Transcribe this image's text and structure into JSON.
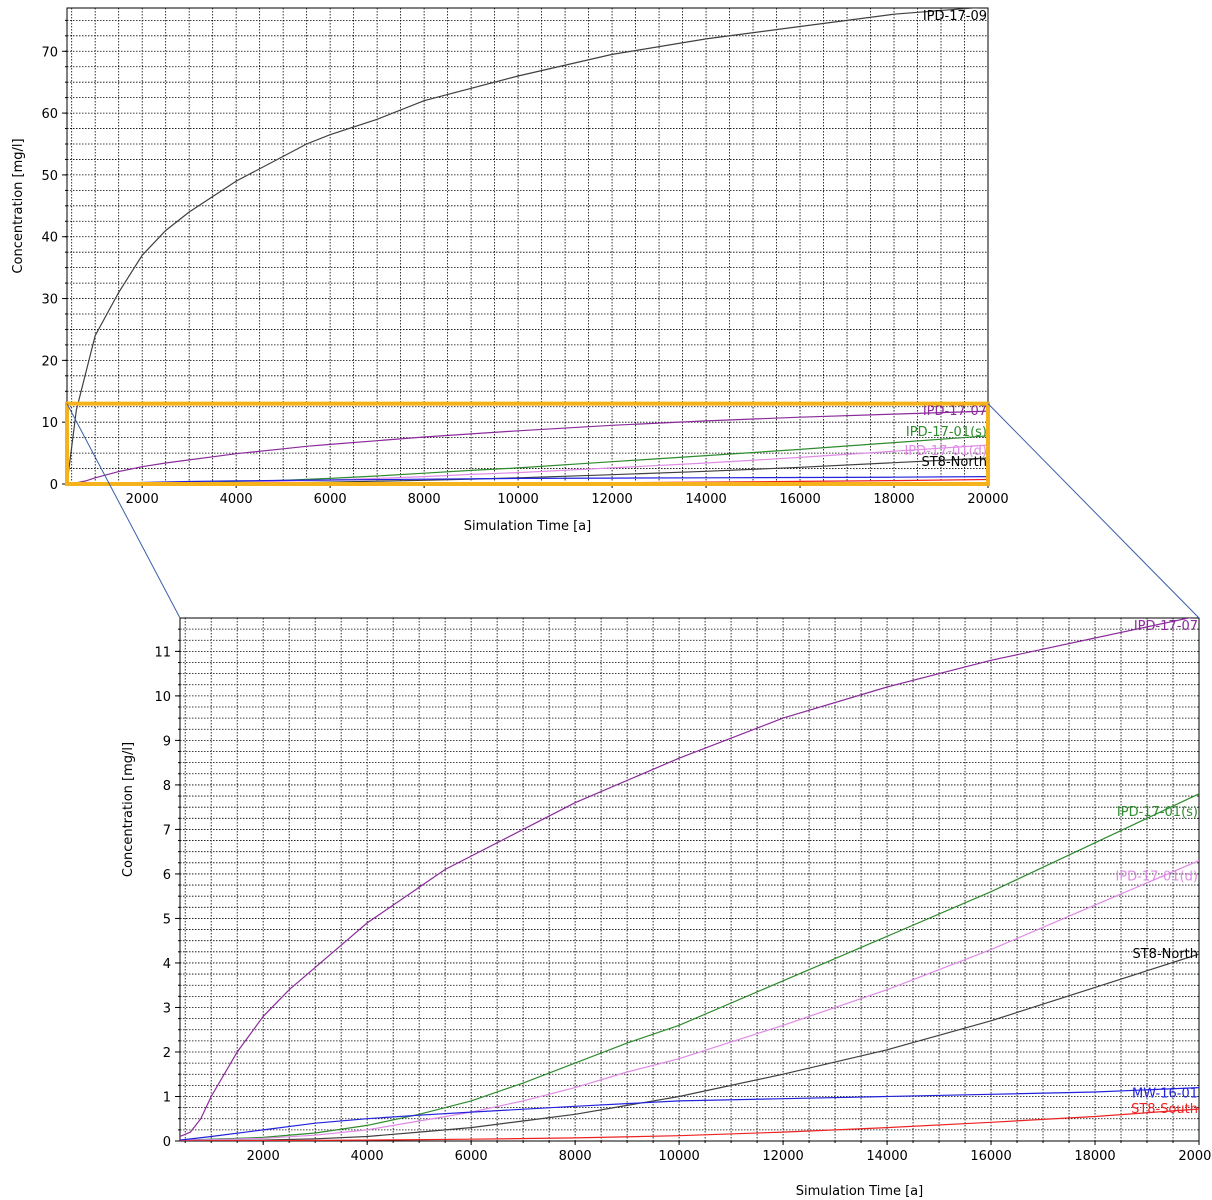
{
  "chart_data": [
    {
      "id": "overview",
      "type": "line",
      "title": "",
      "xlabel": "Simulation Time [a]",
      "ylabel": "Concentration [mg/l]",
      "xlim": [
        400,
        20000
      ],
      "ylim": [
        0,
        77
      ],
      "x_ticks": [
        2000,
        4000,
        6000,
        8000,
        10000,
        12000,
        14000,
        16000,
        18000,
        20000
      ],
      "y_ticks": [
        0,
        10,
        20,
        30,
        40,
        50,
        60,
        70
      ],
      "grid": true,
      "legend": "inline labels at right end of lines",
      "series": [
        {
          "name": "IPD-17-09",
          "color": "#404040",
          "x": [
            400,
            600,
            1000,
            1500,
            2000,
            2500,
            3000,
            4000,
            5000,
            5500,
            6000,
            7000,
            8000,
            10000,
            12000,
            14000,
            16000,
            18000,
            20000
          ],
          "y": [
            0,
            12,
            24,
            31,
            37,
            41,
            44,
            49,
            53,
            55,
            56.5,
            59,
            62,
            66,
            69.5,
            72,
            74,
            76,
            77.2
          ]
        },
        {
          "name": "IPD-17-07",
          "color": "#8b2a9b",
          "x": [
            400,
            600,
            800,
            1000,
            1500,
            2000,
            2500,
            3000,
            3500,
            4000,
            5000,
            5500,
            6000,
            8000,
            10000,
            12000,
            14000,
            16000,
            18000,
            20000
          ],
          "y": [
            0.1,
            0.2,
            0.5,
            1.0,
            2.0,
            2.8,
            3.4,
            3.9,
            4.4,
            4.9,
            5.7,
            6.1,
            6.4,
            7.6,
            8.6,
            9.5,
            10.2,
            10.8,
            11.3,
            11.8
          ]
        },
        {
          "name": "IPD-17-01(s)",
          "color": "#2e8b2e",
          "x": [
            400,
            1000,
            2000,
            3000,
            4000,
            5000,
            6000,
            7000,
            8000,
            9000,
            10000,
            12000,
            14000,
            16000,
            18000,
            20000
          ],
          "y": [
            0.02,
            0.04,
            0.08,
            0.18,
            0.35,
            0.6,
            0.9,
            1.3,
            1.75,
            2.2,
            2.6,
            3.6,
            4.6,
            5.6,
            6.7,
            7.8
          ]
        },
        {
          "name": "IPD-17-01(d)",
          "color": "#e08ae6",
          "x": [
            400,
            1000,
            2000,
            3000,
            4000,
            5000,
            6000,
            7000,
            8000,
            9000,
            10000,
            12000,
            14000,
            16000,
            18000,
            20000
          ],
          "y": [
            0.02,
            0.03,
            0.06,
            0.13,
            0.25,
            0.45,
            0.65,
            0.9,
            1.2,
            1.55,
            1.85,
            2.6,
            3.4,
            4.3,
            5.3,
            6.3
          ]
        },
        {
          "name": "ST8-North",
          "color": "#404040",
          "x": [
            400,
            1000,
            2000,
            3000,
            4000,
            5000,
            6000,
            7000,
            8000,
            9000,
            10000,
            12000,
            14000,
            16000,
            18000,
            20000
          ],
          "y": [
            0.0,
            0.01,
            0.02,
            0.05,
            0.1,
            0.2,
            0.3,
            0.45,
            0.6,
            0.8,
            1.0,
            1.5,
            2.05,
            2.7,
            3.45,
            4.2
          ]
        },
        {
          "name": "MW-16-01",
          "color": "#2222dd",
          "x": [
            400,
            1000,
            2000,
            3000,
            4000,
            5000,
            6000,
            8000,
            10000,
            12000,
            14000,
            16000,
            18000,
            20000
          ],
          "y": [
            0.02,
            0.1,
            0.25,
            0.4,
            0.5,
            0.58,
            0.65,
            0.78,
            0.9,
            0.95,
            1.0,
            1.05,
            1.1,
            1.2
          ]
        },
        {
          "name": "ST8-South",
          "color": "#ee2222",
          "x": [
            400,
            2000,
            4000,
            6000,
            8000,
            10000,
            12000,
            14000,
            16000,
            18000,
            20000
          ],
          "y": [
            0.0,
            0.01,
            0.02,
            0.04,
            0.07,
            0.12,
            0.2,
            0.3,
            0.42,
            0.55,
            0.72
          ]
        }
      ]
    },
    {
      "id": "zoom",
      "type": "line",
      "title": "",
      "xlabel": "Simulation Time [a]",
      "ylabel": "Concentration [mg/l]",
      "xlim": [
        400,
        20000
      ],
      "ylim": [
        0,
        11.75
      ],
      "x_ticks": [
        2000,
        4000,
        6000,
        8000,
        10000,
        12000,
        14000,
        16000,
        18000,
        20000
      ],
      "y_ticks": [
        0,
        1,
        2,
        3,
        4,
        5,
        6,
        7,
        8,
        9,
        10,
        11
      ],
      "grid": true,
      "legend": "inline labels at right end of lines",
      "series_ref": "overview",
      "exclude": [
        "IPD-17-09"
      ]
    }
  ],
  "overlay": {
    "zoom_box_color": "#f6b21a",
    "zoom_box_range": {
      "x": [
        400,
        20000
      ],
      "y": [
        0,
        13
      ]
    },
    "connector_color": "#3a5fa8"
  }
}
